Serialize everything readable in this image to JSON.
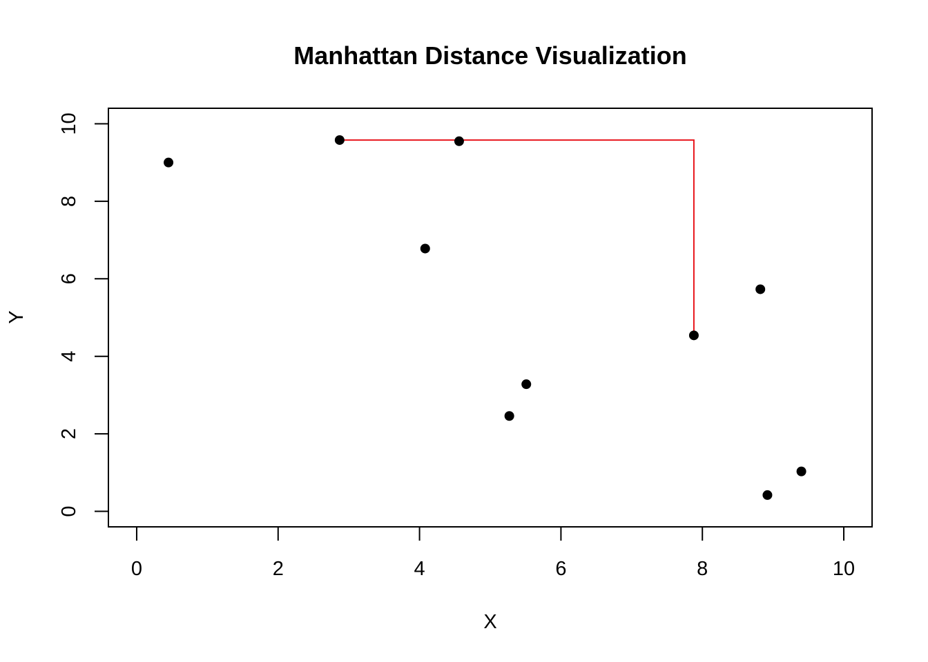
{
  "chart_data": {
    "type": "scatter",
    "title": "Manhattan Distance Visualization",
    "xlabel": "X",
    "ylabel": "Y",
    "xlim": [
      -0.4,
      10.4
    ],
    "ylim": [
      -0.4,
      10.4
    ],
    "xticks": [
      0,
      2,
      4,
      6,
      8,
      10
    ],
    "yticks": [
      0,
      2,
      4,
      6,
      8,
      10
    ],
    "xtick_labels": [
      "0",
      "2",
      "4",
      "6",
      "8",
      "10"
    ],
    "ytick_labels": [
      "0",
      "2",
      "4",
      "6",
      "8",
      "10"
    ],
    "grid": false,
    "points": [
      {
        "x": 0.45,
        "y": 9.0
      },
      {
        "x": 2.87,
        "y": 9.58
      },
      {
        "x": 4.56,
        "y": 9.55
      },
      {
        "x": 4.08,
        "y": 6.78
      },
      {
        "x": 5.27,
        "y": 2.46
      },
      {
        "x": 5.51,
        "y": 3.28
      },
      {
        "x": 7.88,
        "y": 4.54
      },
      {
        "x": 8.82,
        "y": 5.73
      },
      {
        "x": 8.92,
        "y": 0.42
      },
      {
        "x": 9.4,
        "y": 1.03
      }
    ],
    "path": {
      "color": "#e8141b",
      "points": [
        {
          "x": 2.87,
          "y": 9.58
        },
        {
          "x": 7.88,
          "y": 9.58
        },
        {
          "x": 7.88,
          "y": 4.54
        }
      ]
    },
    "point_color": "#000000"
  }
}
